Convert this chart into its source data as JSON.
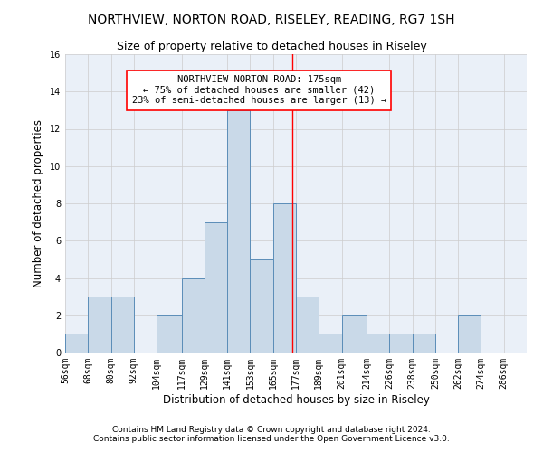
{
  "title1": "NORTHVIEW, NORTON ROAD, RISELEY, READING, RG7 1SH",
  "title2": "Size of property relative to detached houses in Riseley",
  "xlabel": "Distribution of detached houses by size in Riseley",
  "ylabel": "Number of detached properties",
  "bin_edges": [
    56,
    68,
    80,
    92,
    104,
    117,
    129,
    141,
    153,
    165,
    177,
    189,
    201,
    214,
    226,
    238,
    250,
    262,
    274,
    286,
    298
  ],
  "bar_heights": [
    1,
    3,
    3,
    0,
    2,
    4,
    7,
    13,
    5,
    8,
    3,
    1,
    2,
    1,
    1,
    1,
    0,
    2,
    0,
    0
  ],
  "bar_color": "#c9d9e8",
  "bar_edge_color": "#5b8db8",
  "vline_x": 175,
  "vline_color": "red",
  "annotation_title": "NORTHVIEW NORTON ROAD: 175sqm",
  "annotation_line1": "← 75% of detached houses are smaller (42)",
  "annotation_line2": "23% of semi-detached houses are larger (13) →",
  "annotation_box_color": "white",
  "annotation_box_edgecolor": "red",
  "ylim": [
    0,
    16
  ],
  "yticks": [
    0,
    2,
    4,
    6,
    8,
    10,
    12,
    14,
    16
  ],
  "grid_color": "#cccccc",
  "bg_color": "#eaf0f8",
  "footnote1": "Contains HM Land Registry data © Crown copyright and database right 2024.",
  "footnote2": "Contains public sector information licensed under the Open Government Licence v3.0.",
  "title1_fontsize": 10,
  "title2_fontsize": 9,
  "xlabel_fontsize": 8.5,
  "ylabel_fontsize": 8.5,
  "tick_fontsize": 7,
  "annotation_fontsize": 7.5,
  "footnote_fontsize": 6.5
}
